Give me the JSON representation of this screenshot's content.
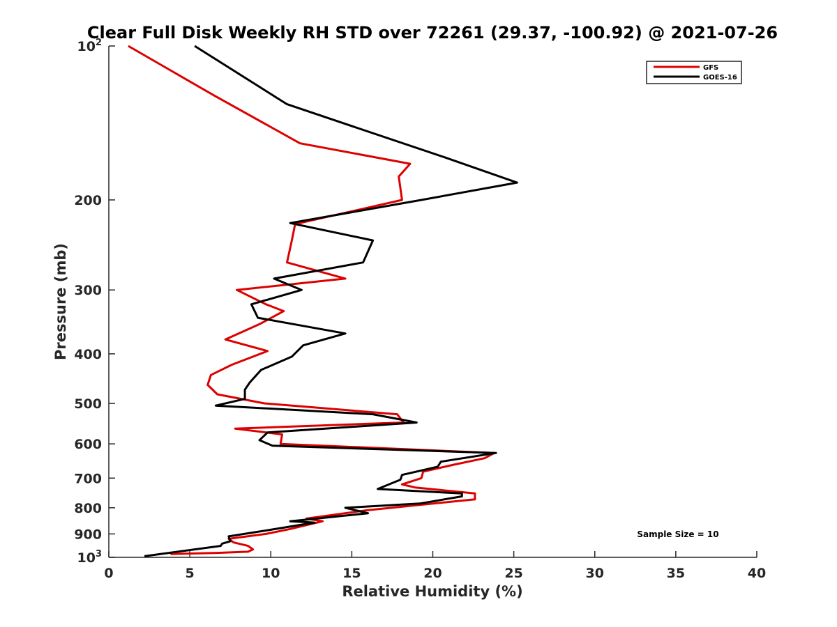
{
  "chart_data": {
    "type": "line",
    "title": "Clear Full Disk Weekly RH STD over 72261 (29.37, -100.92) @ 2021-07-26",
    "xlabel": "Relative Humidity (%)",
    "ylabel": "Pressure (mb)",
    "xlim": [
      0,
      40
    ],
    "ylim": [
      1000,
      100
    ],
    "yscale": "log",
    "y_reversed": true,
    "grid": false,
    "legend_placement": "top-right",
    "x_ticks": [
      "0",
      "5",
      "10",
      "15",
      "20",
      "25",
      "30",
      "35",
      "40"
    ],
    "y_ticks": [
      {
        "value": 100,
        "base": "10",
        "exp": "2"
      },
      {
        "value": 200,
        "label": "200"
      },
      {
        "value": 300,
        "label": "300"
      },
      {
        "value": 400,
        "label": "400"
      },
      {
        "value": 500,
        "label": "500"
      },
      {
        "value": 600,
        "label": "600"
      },
      {
        "value": 700,
        "label": "700"
      },
      {
        "value": 800,
        "label": "800"
      },
      {
        "value": 900,
        "label": "900"
      },
      {
        "value": 1000,
        "base": "10",
        "exp": "3"
      }
    ],
    "annotation": "Sample Size = 10",
    "series": [
      {
        "name": "GFS",
        "color": "#dd0000",
        "points": [
          [
            1.2,
            100
          ],
          [
            6.5,
            125
          ],
          [
            11.8,
            155
          ],
          [
            18.6,
            170
          ],
          [
            17.9,
            180
          ],
          [
            18.1,
            200
          ],
          [
            11.5,
            223
          ],
          [
            11.3,
            240
          ],
          [
            11.0,
            265
          ],
          [
            14.6,
            285
          ],
          [
            7.9,
            300
          ],
          [
            9.7,
            320
          ],
          [
            10.8,
            330
          ],
          [
            9.3,
            350
          ],
          [
            7.2,
            375
          ],
          [
            9.8,
            395
          ],
          [
            7.6,
            420
          ],
          [
            6.3,
            440
          ],
          [
            6.1,
            460
          ],
          [
            6.7,
            480
          ],
          [
            9.6,
            500
          ],
          [
            17.8,
            525
          ],
          [
            18.2,
            545
          ],
          [
            7.8,
            560
          ],
          [
            10.7,
            575
          ],
          [
            10.6,
            600
          ],
          [
            23.8,
            625
          ],
          [
            23.2,
            640
          ],
          [
            21.2,
            660
          ],
          [
            19.4,
            680
          ],
          [
            19.3,
            700
          ],
          [
            18.1,
            720
          ],
          [
            18.9,
            730
          ],
          [
            22.6,
            750
          ],
          [
            22.6,
            770
          ],
          [
            15.8,
            810
          ],
          [
            12.2,
            840
          ],
          [
            13.2,
            850
          ],
          [
            11.2,
            880
          ],
          [
            9.7,
            900
          ],
          [
            7.4,
            920
          ],
          [
            7.7,
            935
          ],
          [
            8.6,
            950
          ],
          [
            8.9,
            965
          ],
          [
            8.6,
            975
          ],
          [
            6.7,
            980
          ],
          [
            3.8,
            985
          ]
        ]
      },
      {
        "name": "GOES-16",
        "color": "#000000",
        "points": [
          [
            5.3,
            100
          ],
          [
            11.0,
            130
          ],
          [
            20.7,
            165
          ],
          [
            25.2,
            185
          ],
          [
            19.3,
            200
          ],
          [
            11.2,
            222
          ],
          [
            16.3,
            240
          ],
          [
            15.7,
            265
          ],
          [
            10.2,
            285
          ],
          [
            11.9,
            300
          ],
          [
            8.8,
            320
          ],
          [
            9.2,
            340
          ],
          [
            14.6,
            365
          ],
          [
            12.0,
            385
          ],
          [
            11.3,
            405
          ],
          [
            9.4,
            430
          ],
          [
            8.7,
            455
          ],
          [
            8.4,
            470
          ],
          [
            8.4,
            490
          ],
          [
            6.6,
            505
          ],
          [
            16.3,
            525
          ],
          [
            19.0,
            545
          ],
          [
            9.8,
            570
          ],
          [
            9.3,
            590
          ],
          [
            10.1,
            605
          ],
          [
            23.9,
            625
          ],
          [
            20.5,
            650
          ],
          [
            20.3,
            665
          ],
          [
            18.1,
            690
          ],
          [
            18.0,
            705
          ],
          [
            16.6,
            735
          ],
          [
            21.8,
            750
          ],
          [
            21.8,
            760
          ],
          [
            19.2,
            785
          ],
          [
            14.6,
            800
          ],
          [
            16.0,
            820
          ],
          [
            11.2,
            850
          ],
          [
            12.7,
            855
          ],
          [
            9.8,
            885
          ],
          [
            7.4,
            910
          ],
          [
            7.5,
            930
          ],
          [
            7.0,
            940
          ],
          [
            6.9,
            950
          ],
          [
            2.2,
            995
          ]
        ]
      }
    ]
  }
}
